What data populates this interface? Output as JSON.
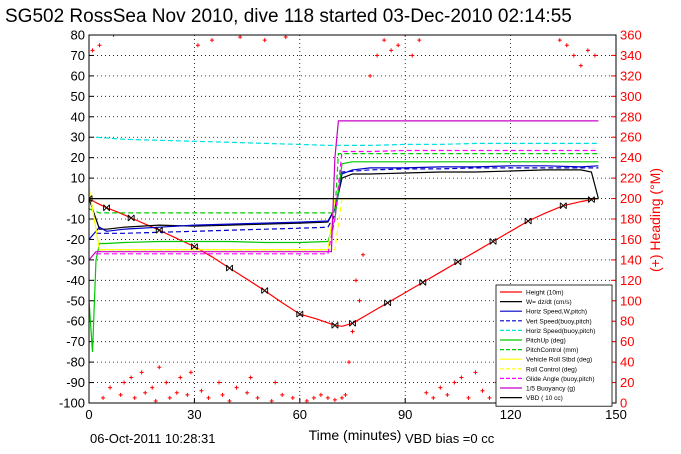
{
  "title": "SG502 RossSea Nov 2010, dive 118 started 03-Dec-2010 02:14:55",
  "footer_left": "06-Oct-2011 10:28:31",
  "footer_right": "VBD bias =0 cc",
  "chart_data": {
    "type": "line",
    "title": "SG502 RossSea Nov 2010, dive 118 started 03-Dec-2010 02:14:55",
    "xlabel": "Time (minutes)",
    "ylabel": "",
    "y2label": "(+) Heading (°M)",
    "xlim": [
      0,
      150
    ],
    "ylim": [
      -100,
      80
    ],
    "y2lim": [
      0,
      360
    ],
    "xticks": [
      0,
      30,
      60,
      90,
      120,
      150
    ],
    "yticks": [
      -100,
      -90,
      -80,
      -70,
      -60,
      -50,
      -40,
      -30,
      -20,
      -10,
      0,
      10,
      20,
      30,
      40,
      50,
      60,
      70,
      80
    ],
    "y2ticks": [
      0,
      20,
      40,
      60,
      80,
      100,
      120,
      140,
      160,
      180,
      200,
      220,
      240,
      260,
      280,
      300,
      320,
      340,
      360
    ],
    "grid": true,
    "legend_position": "bottom-right",
    "series": [
      {
        "name": "Height (10m)",
        "color": "#ff0000",
        "style": "solid",
        "x": [
          0,
          2,
          5,
          8,
          12,
          16,
          20,
          25,
          30,
          35,
          40,
          45,
          50,
          55,
          60,
          65,
          70,
          72,
          75,
          80,
          85,
          90,
          95,
          100,
          105,
          110,
          115,
          120,
          125,
          130,
          135,
          140,
          143,
          145
        ],
        "y": [
          0,
          -2,
          -4.5,
          -6.5,
          -9.5,
          -12.5,
          -15.5,
          -19.5,
          -23.5,
          -28.5,
          -34,
          -39.5,
          -45,
          -51,
          -56.5,
          -59,
          -62,
          -62.5,
          -61,
          -56,
          -51,
          -46,
          -41,
          -36,
          -31,
          -26,
          -21,
          -16,
          -11,
          -7,
          -3.5,
          -1.5,
          -0.5,
          0
        ]
      },
      {
        "name": "W= dz/dt (cm/s)",
        "color": "#000000",
        "style": "solid",
        "x": [
          0,
          2,
          3,
          5,
          10,
          20,
          30,
          40,
          50,
          60,
          68,
          70,
          72,
          75,
          80,
          90,
          100,
          110,
          120,
          130,
          140,
          143,
          145
        ],
        "y": [
          0,
          -10,
          -15,
          -15,
          -14,
          -13,
          -13.5,
          -13,
          -12.5,
          -12,
          -11.5,
          -5,
          10,
          12,
          12,
          12.5,
          13,
          13,
          13.5,
          14,
          14,
          13,
          0
        ]
      },
      {
        "name": "Horiz Speed,W,pitch)",
        "color": "#0000c8",
        "style": "solid",
        "x": [
          0,
          3,
          5,
          10,
          20,
          30,
          40,
          50,
          60,
          68,
          70,
          72,
          75,
          80,
          90,
          100,
          110,
          120,
          130,
          140,
          145
        ],
        "y": [
          -20,
          -14,
          -16,
          -15,
          -14,
          -13,
          -12.5,
          -12,
          -11.5,
          -11,
          -5,
          12,
          14,
          15,
          15,
          15.5,
          15.5,
          16,
          16,
          15.5,
          16
        ]
      },
      {
        "name": "Vert Speed(buoy,pitch)",
        "color": "#0000c8",
        "style": "dashed",
        "x": [
          2,
          10,
          20,
          30,
          40,
          50,
          60,
          68,
          70,
          72,
          80,
          90,
          100,
          110,
          120,
          130,
          140,
          145
        ],
        "y": [
          -17,
          -17,
          -16.5,
          -16,
          -15.5,
          -15,
          -14.5,
          -14,
          -8,
          13,
          14,
          14.5,
          14.5,
          15,
          15,
          15,
          15,
          15
        ]
      },
      {
        "name": "Horiz Speed(buoy,pitch)",
        "color": "#00e0e0",
        "style": "dashed",
        "x": [
          2,
          10,
          20,
          30,
          40,
          50,
          60,
          68,
          70,
          72,
          80,
          90,
          100,
          110,
          120,
          130,
          140,
          145
        ],
        "y": [
          30,
          29,
          28.5,
          28,
          27.5,
          27,
          26.5,
          26,
          26,
          26,
          26,
          26.5,
          26.5,
          27,
          27,
          27,
          27,
          27
        ]
      },
      {
        "name": "PitchUp (deg)",
        "color": "#00c800",
        "style": "solid",
        "x": [
          0,
          1,
          2,
          3,
          5,
          10,
          20,
          30,
          40,
          50,
          60,
          68,
          70,
          72,
          75,
          80,
          90,
          100,
          110,
          120,
          130,
          140,
          145
        ],
        "y": [
          -50,
          -75,
          -30,
          -22,
          -22,
          -21.5,
          -21,
          -21,
          -21,
          -21.5,
          -21.5,
          -21,
          -10,
          17,
          18,
          18,
          18,
          18,
          18,
          18,
          18,
          18,
          18
        ]
      },
      {
        "name": "PitchControl (mm)",
        "color": "#00c800",
        "style": "dashed",
        "x": [
          0,
          3,
          10,
          20,
          30,
          40,
          50,
          60,
          70,
          71,
          80,
          90,
          100,
          110,
          120,
          130,
          140,
          145
        ],
        "y": [
          -5,
          -7,
          -7,
          -7,
          -7,
          -7,
          -7,
          -7,
          -7,
          22,
          22,
          22,
          22,
          22,
          22,
          22,
          22,
          22
        ]
      },
      {
        "name": "Vehicle Roll Stbd (deg)",
        "color": "#ffff00",
        "style": "solid",
        "x": [
          0,
          3,
          10,
          20,
          30,
          40,
          50,
          60,
          68,
          70,
          72,
          80,
          90,
          100,
          110,
          120,
          130,
          140,
          145
        ],
        "y": [
          5,
          -25,
          -25,
          -25,
          -25,
          -25,
          -25,
          -25,
          -25,
          0,
          0,
          0,
          0,
          0,
          0,
          0,
          0,
          0,
          0
        ]
      },
      {
        "name": "Roll Control (deg)",
        "color": "#ffff00",
        "style": "dashed",
        "x": [
          0,
          3,
          10,
          20,
          30,
          40,
          50,
          60,
          70,
          72,
          80,
          90,
          100,
          110,
          120,
          130,
          140,
          145
        ],
        "y": [
          5,
          -25,
          -25,
          -25,
          -25,
          -25,
          -25,
          -25,
          -25,
          0,
          0,
          0,
          0,
          0,
          0,
          0,
          0,
          0
        ]
      },
      {
        "name": "Glide Angle (buoy,pitch)",
        "color": "#ff00ff",
        "style": "dashed",
        "x": [
          2,
          10,
          20,
          30,
          40,
          50,
          60,
          68,
          70,
          72,
          80,
          90,
          100,
          110,
          120,
          130,
          140,
          145
        ],
        "y": [
          -27,
          -27,
          -27,
          -27,
          -27,
          -27,
          -27,
          -27,
          -10,
          23,
          23,
          23.5,
          23.5,
          23.5,
          23.5,
          23.5,
          23.5,
          23.5
        ]
      },
      {
        "name": "1/5 Buoyancy (g)",
        "color": "#c800c8",
        "style": "solid",
        "x": [
          0,
          2,
          10,
          20,
          30,
          40,
          50,
          60,
          69,
          70,
          71,
          80,
          90,
          100,
          110,
          120,
          130,
          140,
          145
        ],
        "y": [
          -30,
          -26,
          -26,
          -26,
          -26,
          -26,
          -26,
          -26,
          -26,
          20,
          38,
          38,
          38,
          38,
          38,
          38,
          38,
          38,
          38
        ]
      },
      {
        "name": "VBD ( 10 cc)",
        "color": "#000000",
        "style": "solid",
        "x": [
          0,
          145
        ],
        "y": [
          0,
          0
        ]
      }
    ],
    "heading_series": {
      "name": "(+) Heading (°M)",
      "color": "#ff0000",
      "marker": "+",
      "x": [
        1,
        3,
        4,
        6,
        7,
        9,
        10,
        12,
        13,
        15,
        16,
        18,
        19,
        20,
        22,
        23,
        25,
        26,
        28,
        29,
        31,
        32,
        34,
        35,
        37,
        38,
        40,
        42,
        43,
        45,
        46,
        48,
        50,
        52,
        53,
        55,
        56,
        58,
        60,
        62,
        64,
        66,
        68,
        70,
        72,
        73,
        74,
        75,
        76,
        77,
        78,
        80,
        82,
        84,
        86,
        88,
        90,
        92,
        94,
        96,
        98,
        100,
        102,
        104,
        106,
        108,
        110,
        112,
        114,
        116,
        118,
        120,
        122,
        124,
        126,
        128,
        130,
        132,
        134,
        136,
        138,
        140,
        142,
        144
      ],
      "y": [
        345,
        350,
        5,
        15,
        360,
        8,
        20,
        25,
        5,
        30,
        10,
        15,
        2,
        35,
        20,
        5,
        10,
        25,
        8,
        30,
        350,
        12,
        5,
        355,
        20,
        8,
        2,
        15,
        358,
        10,
        25,
        5,
        355,
        2,
        20,
        8,
        358,
        5,
        0,
        2,
        5,
        8,
        5,
        3,
        5,
        8,
        40,
        70,
        120,
        100,
        145,
        320,
        340,
        355,
        345,
        350,
        360,
        340,
        355,
        10,
        5,
        15,
        8,
        20,
        25,
        5,
        30,
        12,
        5,
        20,
        35,
        10,
        5,
        25,
        8,
        30,
        12,
        5,
        355,
        350,
        340,
        330,
        345,
        340
      ]
    }
  }
}
